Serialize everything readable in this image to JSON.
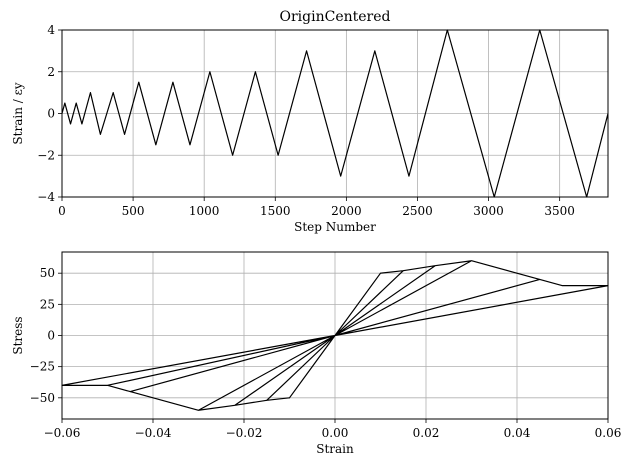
{
  "chart_data": [
    {
      "type": "line",
      "title": "OriginCentered",
      "xlabel": "Step Number",
      "ylabel": "Strain / εy",
      "xlim": [
        0,
        3840
      ],
      "ylim": [
        -4,
        4
      ],
      "grid": true,
      "xticks": [
        0,
        500,
        1000,
        1500,
        2000,
        2500,
        3000,
        3500
      ],
      "xtick_labels": [
        "0",
        "500",
        "1000",
        "1500",
        "2000",
        "2500",
        "3000",
        "3500"
      ],
      "yticks": [
        -4,
        -2,
        0,
        2,
        4
      ],
      "ytick_labels": [
        "−4",
        "−2",
        "0",
        "2",
        "4"
      ],
      "series": [
        {
          "x": [
            0,
            20,
            60,
            100,
            140,
            200,
            270,
            360,
            440,
            540,
            660,
            780,
            900,
            1040,
            1200,
            1360,
            1520,
            1720,
            1960,
            2200,
            2440,
            2710,
            3040,
            3360,
            3690,
            3840
          ],
          "y": [
            0,
            0.5,
            -0.5,
            0.5,
            -0.5,
            1,
            -1,
            1,
            -1,
            1.5,
            -1.5,
            1.5,
            -1.5,
            2,
            -2,
            2,
            -2,
            3,
            -3,
            3,
            -3,
            4,
            -4,
            4,
            -4,
            0
          ]
        }
      ]
    },
    {
      "type": "line",
      "title": "",
      "xlabel": "Strain",
      "ylabel": "Stress",
      "xlim": [
        -0.06,
        0.06
      ],
      "ylim": [
        -67,
        67
      ],
      "grid": true,
      "xticks": [
        -0.06,
        -0.04,
        -0.02,
        0,
        0.02,
        0.04,
        0.06
      ],
      "xtick_labels": [
        "−0.06",
        "−0.04",
        "−0.02",
        "0.00",
        "0.02",
        "0.04",
        "0.06"
      ],
      "yticks": [
        -50,
        -25,
        0,
        25,
        50
      ],
      "ytick_labels": [
        "−50",
        "−25",
        "0",
        "25",
        "50"
      ],
      "series": [
        {
          "x": [
            0,
            0.01,
            0,
            -0.01,
            0,
            0.01,
            0,
            -0.01,
            0,
            0.015,
            0,
            -0.015,
            0,
            0.015,
            0,
            -0.015,
            0,
            0.022,
            0,
            -0.022,
            0,
            0.022,
            0,
            -0.022,
            0,
            0.03,
            0,
            -0.03,
            0,
            0.03,
            0,
            -0.03,
            0,
            0.045,
            0,
            -0.045,
            0,
            0.045,
            0,
            -0.045,
            0,
            0.06,
            0.05,
            0.045,
            0.03,
            0.022,
            0.015,
            0.01,
            0,
            -0.06,
            -0.05,
            -0.045,
            -0.03,
            -0.022,
            -0.015,
            -0.01,
            0,
            0.06,
            0,
            -0.06,
            -0.05,
            0
          ],
          "y": [
            0,
            50,
            0,
            -50,
            0,
            50,
            0,
            -50,
            0,
            52,
            0,
            -52,
            0,
            52,
            0,
            -52,
            0,
            56,
            0,
            -56,
            0,
            56,
            0,
            -56,
            0,
            60,
            0,
            -60,
            0,
            60,
            0,
            -60,
            0,
            45,
            0,
            -45,
            0,
            45,
            0,
            -45,
            0,
            40,
            40,
            45,
            60,
            56,
            52,
            50,
            0,
            -40,
            -40,
            -45,
            -60,
            -56,
            -52,
            -50,
            0,
            40,
            0,
            -40,
            -40,
            0
          ]
        }
      ]
    }
  ]
}
